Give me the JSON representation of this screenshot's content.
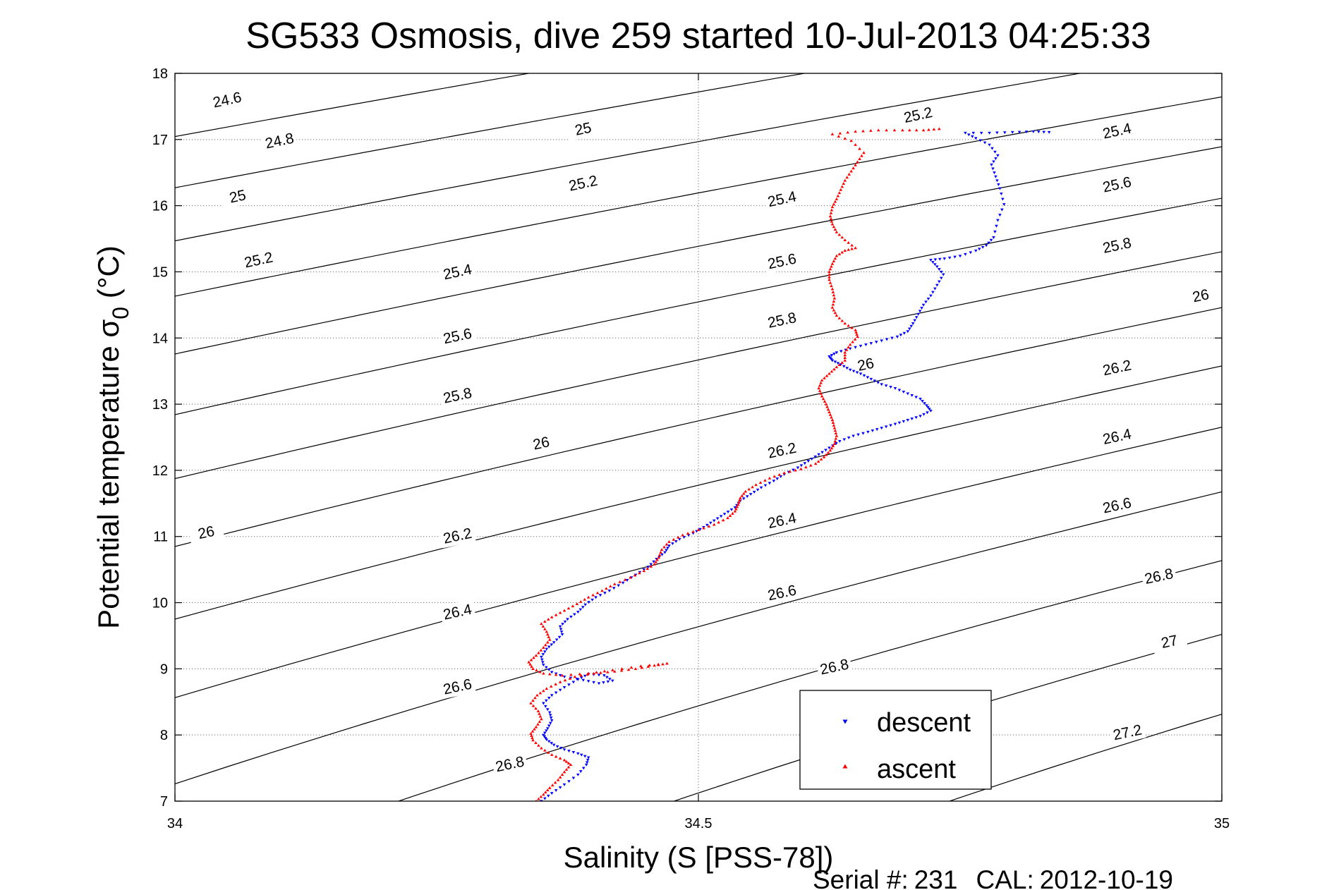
{
  "chart_data": {
    "type": "scatter",
    "title": "SG533 Osmosis, dive 259 started 10-Jul-2013 04:25:33",
    "xlabel": "Salinity (S [PSS-78])",
    "ylabel_main": "Potential temperature σ",
    "ylabel_sub": "0",
    "ylabel_tail": " (°C)",
    "xlim": [
      34,
      35
    ],
    "ylim": [
      7,
      18
    ],
    "xticks": [
      34,
      34.5,
      35
    ],
    "xtick_labels": [
      "34",
      "34.5",
      "35"
    ],
    "yticks": [
      7,
      8,
      9,
      10,
      11,
      12,
      13,
      14,
      15,
      16,
      17,
      18
    ],
    "ytick_labels": [
      "7",
      "8",
      "9",
      "10",
      "11",
      "12",
      "13",
      "14",
      "15",
      "16",
      "17",
      "18"
    ],
    "grid": true,
    "legend_position": "bottom-right",
    "isopycnals": {
      "levels": [
        24.6,
        24.8,
        25,
        25.2,
        25.4,
        25.6,
        25.8,
        26,
        26.2,
        26.4,
        26.6,
        26.8,
        27,
        27.2
      ],
      "labels": [
        {
          "text": "24.6",
          "s": 34.05,
          "t": 17.59
        },
        {
          "text": "24.8",
          "s": 34.1,
          "t": 16.97
        },
        {
          "text": "25",
          "s": 34.06,
          "t": 16.13
        },
        {
          "text": "25",
          "s": 34.39,
          "t": 17.15
        },
        {
          "text": "25.2",
          "s": 34.08,
          "t": 15.17
        },
        {
          "text": "25.2",
          "s": 34.39,
          "t": 16.33
        },
        {
          "text": "25.2",
          "s": 34.71,
          "t": 17.36
        },
        {
          "text": "25.4",
          "s": 34.27,
          "t": 14.99
        },
        {
          "text": "25.4",
          "s": 34.58,
          "t": 16.09
        },
        {
          "text": "25.4",
          "s": 34.9,
          "t": 17.12
        },
        {
          "text": "25.6",
          "s": 34.27,
          "t": 14.02
        },
        {
          "text": "25.6",
          "s": 34.58,
          "t": 15.15
        },
        {
          "text": "25.6",
          "s": 34.9,
          "t": 16.31
        },
        {
          "text": "25.8",
          "s": 34.27,
          "t": 13.12
        },
        {
          "text": "25.8",
          "s": 34.58,
          "t": 14.26
        },
        {
          "text": "25.8",
          "s": 34.9,
          "t": 15.39
        },
        {
          "text": "26",
          "s": 34.03,
          "t": 11.05
        },
        {
          "text": "26",
          "s": 34.35,
          "t": 12.4
        },
        {
          "text": "26",
          "s": 34.66,
          "t": 13.59
        },
        {
          "text": "26",
          "s": 34.98,
          "t": 14.63
        },
        {
          "text": "26.2",
          "s": 34.27,
          "t": 11.0
        },
        {
          "text": "26.2",
          "s": 34.58,
          "t": 12.29
        },
        {
          "text": "26.2",
          "s": 34.9,
          "t": 13.54
        },
        {
          "text": "26.4",
          "s": 34.27,
          "t": 9.85
        },
        {
          "text": "26.4",
          "s": 34.58,
          "t": 11.23
        },
        {
          "text": "26.4",
          "s": 34.9,
          "t": 12.5
        },
        {
          "text": "26.6",
          "s": 34.27,
          "t": 8.72
        },
        {
          "text": "26.6",
          "s": 34.58,
          "t": 10.14
        },
        {
          "text": "26.6",
          "s": 34.9,
          "t": 11.46
        },
        {
          "text": "26.8",
          "s": 34.32,
          "t": 7.55
        },
        {
          "text": "26.8",
          "s": 34.63,
          "t": 9.02
        },
        {
          "text": "26.8",
          "s": 34.94,
          "t": 10.39
        },
        {
          "text": "27",
          "s": 34.95,
          "t": 9.4
        },
        {
          "text": "27.2",
          "s": 34.91,
          "t": 8.03
        }
      ]
    },
    "series": [
      {
        "name": "descent",
        "color": "#0000ff",
        "marker": "triangle-down",
        "points": [
          [
            34.35,
            7.0
          ],
          [
            34.36,
            7.12
          ],
          [
            34.372,
            7.25
          ],
          [
            34.385,
            7.4
          ],
          [
            34.393,
            7.55
          ],
          [
            34.395,
            7.66
          ],
          [
            34.385,
            7.72
          ],
          [
            34.372,
            7.78
          ],
          [
            34.362,
            7.85
          ],
          [
            34.355,
            7.93
          ],
          [
            34.352,
            8.0
          ],
          [
            34.356,
            8.1
          ],
          [
            34.36,
            8.22
          ],
          [
            34.358,
            8.34
          ],
          [
            34.352,
            8.48
          ],
          [
            34.36,
            8.6
          ],
          [
            34.372,
            8.72
          ],
          [
            34.385,
            8.84
          ],
          [
            34.395,
            8.92
          ],
          [
            34.41,
            8.9
          ],
          [
            34.418,
            8.82
          ],
          [
            34.405,
            8.78
          ],
          [
            34.39,
            8.83
          ],
          [
            34.372,
            8.88
          ],
          [
            34.36,
            8.95
          ],
          [
            34.352,
            9.06
          ],
          [
            34.35,
            9.18
          ],
          [
            34.355,
            9.3
          ],
          [
            34.362,
            9.4
          ],
          [
            34.37,
            9.52
          ],
          [
            34.368,
            9.64
          ],
          [
            34.375,
            9.75
          ],
          [
            34.385,
            9.86
          ],
          [
            34.392,
            9.97
          ],
          [
            34.402,
            10.08
          ],
          [
            34.415,
            10.18
          ],
          [
            34.428,
            10.3
          ],
          [
            34.44,
            10.42
          ],
          [
            34.452,
            10.54
          ],
          [
            34.46,
            10.66
          ],
          [
            34.468,
            10.76
          ],
          [
            34.472,
            10.86
          ],
          [
            34.482,
            10.96
          ],
          [
            34.495,
            11.05
          ],
          [
            34.505,
            11.14
          ],
          [
            34.515,
            11.24
          ],
          [
            34.525,
            11.34
          ],
          [
            34.535,
            11.44
          ],
          [
            34.54,
            11.54
          ],
          [
            34.55,
            11.64
          ],
          [
            34.56,
            11.74
          ],
          [
            34.572,
            11.84
          ],
          [
            34.582,
            11.94
          ],
          [
            34.595,
            12.04
          ],
          [
            34.605,
            12.14
          ],
          [
            34.615,
            12.24
          ],
          [
            34.625,
            12.34
          ],
          [
            34.635,
            12.44
          ],
          [
            34.648,
            12.52
          ],
          [
            34.662,
            12.58
          ],
          [
            34.675,
            12.64
          ],
          [
            34.688,
            12.7
          ],
          [
            34.7,
            12.76
          ],
          [
            34.712,
            12.82
          ],
          [
            34.722,
            12.9
          ],
          [
            34.718,
            12.98
          ],
          [
            34.712,
            13.08
          ],
          [
            34.7,
            13.16
          ],
          [
            34.688,
            13.24
          ],
          [
            34.675,
            13.3
          ],
          [
            34.665,
            13.38
          ],
          [
            34.655,
            13.46
          ],
          [
            34.645,
            13.52
          ],
          [
            34.636,
            13.6
          ],
          [
            34.628,
            13.66
          ],
          [
            34.625,
            13.72
          ],
          [
            34.632,
            13.78
          ],
          [
            34.645,
            13.84
          ],
          [
            34.66,
            13.9
          ],
          [
            34.675,
            13.96
          ],
          [
            34.69,
            14.02
          ],
          [
            34.7,
            14.1
          ],
          [
            34.705,
            14.22
          ],
          [
            34.71,
            14.36
          ],
          [
            34.715,
            14.5
          ],
          [
            34.722,
            14.64
          ],
          [
            34.728,
            14.8
          ],
          [
            34.734,
            14.96
          ],
          [
            34.728,
            15.08
          ],
          [
            34.722,
            15.18
          ],
          [
            34.735,
            15.2
          ],
          [
            34.75,
            15.24
          ],
          [
            34.765,
            15.32
          ],
          [
            34.775,
            15.4
          ],
          [
            34.782,
            15.52
          ],
          [
            34.786,
            15.78
          ],
          [
            34.792,
            16.02
          ],
          [
            34.788,
            16.26
          ],
          [
            34.784,
            16.44
          ],
          [
            34.78,
            16.62
          ],
          [
            34.786,
            16.76
          ],
          [
            34.778,
            16.92
          ],
          [
            34.765,
            17.02
          ],
          [
            34.755,
            17.1
          ],
          [
            34.778,
            17.1
          ],
          [
            34.8,
            17.11
          ],
          [
            34.82,
            17.12
          ],
          [
            34.835,
            17.11
          ]
        ]
      },
      {
        "name": "ascent",
        "color": "#ff0000",
        "marker": "triangle-up",
        "points": [
          [
            34.345,
            7.0
          ],
          [
            34.352,
            7.1
          ],
          [
            34.358,
            7.2
          ],
          [
            34.366,
            7.32
          ],
          [
            34.372,
            7.44
          ],
          [
            34.378,
            7.55
          ],
          [
            34.372,
            7.62
          ],
          [
            34.36,
            7.7
          ],
          [
            34.35,
            7.8
          ],
          [
            34.342,
            7.92
          ],
          [
            34.34,
            8.02
          ],
          [
            34.345,
            8.12
          ],
          [
            34.35,
            8.24
          ],
          [
            34.347,
            8.36
          ],
          [
            34.34,
            8.48
          ],
          [
            34.346,
            8.6
          ],
          [
            34.355,
            8.7
          ],
          [
            34.368,
            8.8
          ],
          [
            34.382,
            8.88
          ],
          [
            34.4,
            8.93
          ],
          [
            34.42,
            8.96
          ],
          [
            34.44,
            9.0
          ],
          [
            34.458,
            9.05
          ],
          [
            34.47,
            9.08
          ],
          [
            34.445,
            9.04
          ],
          [
            34.418,
            8.98
          ],
          [
            34.395,
            8.93
          ],
          [
            34.37,
            8.9
          ],
          [
            34.352,
            8.93
          ],
          [
            34.342,
            9.0
          ],
          [
            34.338,
            9.1
          ],
          [
            34.345,
            9.2
          ],
          [
            34.352,
            9.32
          ],
          [
            34.358,
            9.44
          ],
          [
            34.355,
            9.56
          ],
          [
            34.35,
            9.68
          ],
          [
            34.36,
            9.78
          ],
          [
            34.372,
            9.88
          ],
          [
            34.384,
            9.98
          ],
          [
            34.395,
            10.08
          ],
          [
            34.408,
            10.18
          ],
          [
            34.42,
            10.28
          ],
          [
            34.435,
            10.38
          ],
          [
            34.448,
            10.48
          ],
          [
            34.458,
            10.58
          ],
          [
            34.462,
            10.68
          ],
          [
            34.465,
            10.8
          ],
          [
            34.472,
            10.92
          ],
          [
            34.485,
            11.02
          ],
          [
            34.5,
            11.1
          ],
          [
            34.515,
            11.18
          ],
          [
            34.528,
            11.28
          ],
          [
            34.535,
            11.38
          ],
          [
            34.538,
            11.48
          ],
          [
            34.54,
            11.58
          ],
          [
            34.545,
            11.68
          ],
          [
            34.555,
            11.78
          ],
          [
            34.568,
            11.88
          ],
          [
            34.582,
            11.96
          ],
          [
            34.598,
            12.02
          ],
          [
            34.612,
            12.1
          ],
          [
            34.62,
            12.2
          ],
          [
            34.626,
            12.3
          ],
          [
            34.63,
            12.4
          ],
          [
            34.632,
            12.52
          ],
          [
            34.63,
            12.64
          ],
          [
            34.628,
            12.76
          ],
          [
            34.625,
            12.88
          ],
          [
            34.622,
            13.0
          ],
          [
            34.618,
            13.12
          ],
          [
            34.615,
            13.24
          ],
          [
            34.618,
            13.36
          ],
          [
            34.625,
            13.46
          ],
          [
            34.632,
            13.56
          ],
          [
            34.64,
            13.66
          ],
          [
            34.64,
            13.78
          ],
          [
            34.645,
            13.9
          ],
          [
            34.652,
            14.02
          ],
          [
            34.65,
            14.12
          ],
          [
            34.64,
            14.22
          ],
          [
            34.632,
            14.34
          ],
          [
            34.628,
            14.46
          ],
          [
            34.63,
            14.6
          ],
          [
            34.628,
            14.74
          ],
          [
            34.625,
            14.88
          ],
          [
            34.625,
            15.0
          ],
          [
            34.628,
            15.12
          ],
          [
            34.632,
            15.24
          ],
          [
            34.64,
            15.32
          ],
          [
            34.65,
            15.36
          ],
          [
            34.64,
            15.48
          ],
          [
            34.632,
            15.6
          ],
          [
            34.628,
            15.72
          ],
          [
            34.626,
            15.84
          ],
          [
            34.628,
            15.98
          ],
          [
            34.632,
            16.1
          ],
          [
            34.636,
            16.24
          ],
          [
            34.64,
            16.38
          ],
          [
            34.646,
            16.52
          ],
          [
            34.652,
            16.66
          ],
          [
            34.658,
            16.8
          ],
          [
            34.646,
            16.98
          ],
          [
            34.628,
            17.08
          ],
          [
            34.65,
            17.12
          ],
          [
            34.672,
            17.14
          ],
          [
            34.695,
            17.14
          ],
          [
            34.715,
            17.14
          ],
          [
            34.73,
            17.16
          ]
        ]
      }
    ],
    "legend": [
      {
        "label": "descent",
        "color": "#0000ff",
        "marker": "triangle-down"
      },
      {
        "label": "ascent",
        "color": "#ff0000",
        "marker": "triangle-up"
      }
    ]
  },
  "footer": {
    "serial_label": "Serial #:",
    "serial_value": "231",
    "cal_label": "CAL:",
    "cal_value": "2012-10-19"
  }
}
